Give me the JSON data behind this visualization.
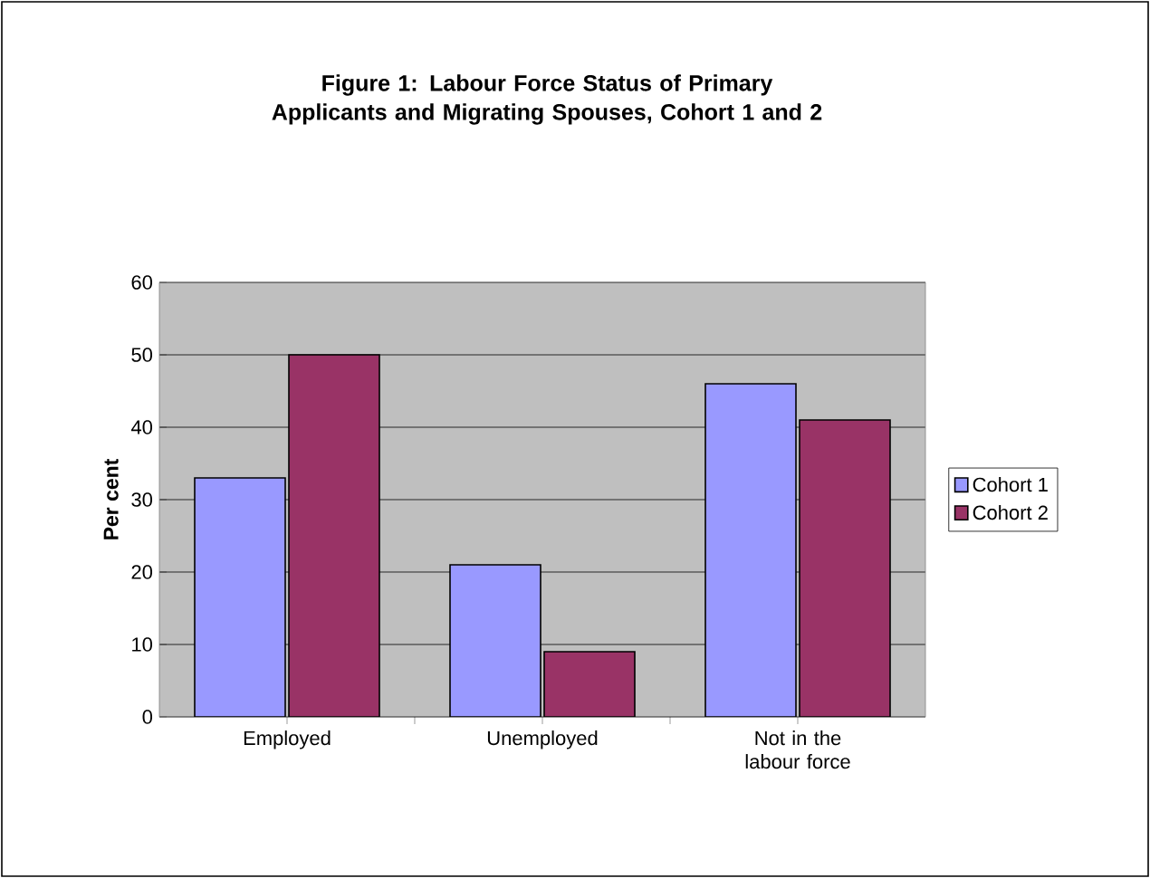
{
  "chart_data": {
    "type": "bar",
    "title": "Figure 1: Labour Force Status of Primary Applicants and Migrating Spouses, Cohort 1 and 2",
    "ylabel": "Per cent",
    "categories": [
      "Employed",
      "Unemployed",
      "Not in the labour force"
    ],
    "series": [
      {
        "name": "Cohort 1",
        "color": "#9999ff",
        "values": [
          33,
          21,
          46
        ]
      },
      {
        "name": "Cohort 2",
        "color": "#993366",
        "values": [
          50,
          9,
          41
        ]
      }
    ],
    "ylim": [
      0,
      60
    ],
    "yticks": [
      0,
      10,
      20,
      30,
      40,
      50,
      60
    ],
    "grid": "y",
    "legend": "right"
  }
}
